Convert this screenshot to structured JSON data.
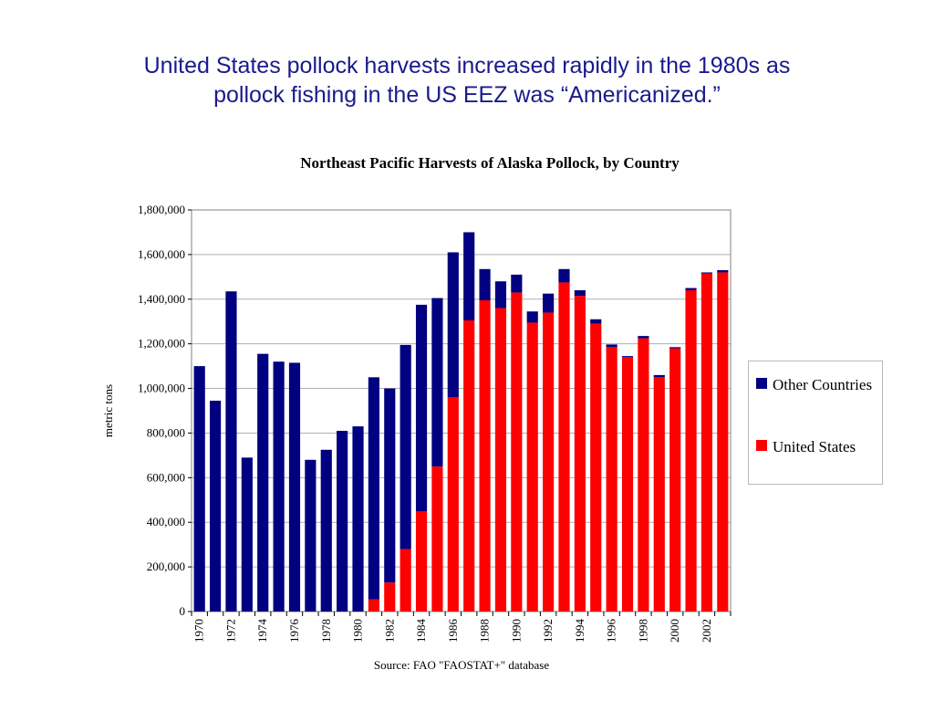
{
  "slide": {
    "title_line1": "United States pollock harvests increased rapidly in the 1980s as",
    "title_line2": "pollock fishing in the US EEZ was “Americanized.”",
    "source": "Source:  FAO \"FAOSTAT+\" database"
  },
  "colors": {
    "title_text": "#1a1a8c",
    "other_countries": "#000080",
    "united_states": "#ff0000"
  },
  "chart_data": {
    "type": "bar",
    "stacked": true,
    "title": "Northeast Pacific Harvests of Alaska Pollock, by Country",
    "xlabel": "",
    "ylabel": "metric tons",
    "ylim": [
      0,
      1800000
    ],
    "yticks": [
      0,
      200000,
      400000,
      600000,
      800000,
      1000000,
      1200000,
      1400000,
      1600000,
      1800000
    ],
    "ytick_labels": [
      "0",
      "200,000",
      "400,000",
      "600,000",
      "800,000",
      "1,000,000",
      "1,200,000",
      "1,400,000",
      "1,600,000",
      "1,800,000"
    ],
    "categories": [
      "1970",
      "1971",
      "1972",
      "1973",
      "1974",
      "1975",
      "1976",
      "1977",
      "1978",
      "1979",
      "1980",
      "1981",
      "1982",
      "1983",
      "1984",
      "1985",
      "1986",
      "1987",
      "1988",
      "1989",
      "1990",
      "1991",
      "1992",
      "1993",
      "1994",
      "1995",
      "1996",
      "1997",
      "1998",
      "1999",
      "2000",
      "2001",
      "2002",
      "2003"
    ],
    "xtick_labels": [
      "1970",
      "1972",
      "1974",
      "1976",
      "1978",
      "1980",
      "1982",
      "1984",
      "1986",
      "1988",
      "1990",
      "1992",
      "1994",
      "1996",
      "1998",
      "2000",
      "2002"
    ],
    "grid": "horizontal",
    "legend_position": "right",
    "series": [
      {
        "name": "United States",
        "color": "#ff0000",
        "values": [
          0,
          0,
          0,
          0,
          0,
          0,
          0,
          0,
          0,
          0,
          0,
          55000,
          130000,
          280000,
          450000,
          650000,
          960000,
          1305000,
          1395000,
          1360000,
          1430000,
          1295000,
          1340000,
          1475000,
          1415000,
          1290000,
          1185000,
          1140000,
          1225000,
          1050000,
          1180000,
          1440000,
          1515000,
          1520000
        ]
      },
      {
        "name": "Other Countries",
        "color": "#000080",
        "values": [
          1100000,
          945000,
          1435000,
          690000,
          1155000,
          1120000,
          1115000,
          680000,
          725000,
          810000,
          830000,
          995000,
          870000,
          915000,
          925000,
          755000,
          650000,
          395000,
          140000,
          120000,
          80000,
          50000,
          85000,
          60000,
          25000,
          20000,
          12000,
          5000,
          10000,
          10000,
          5000,
          10000,
          5000,
          10000
        ]
      }
    ]
  }
}
